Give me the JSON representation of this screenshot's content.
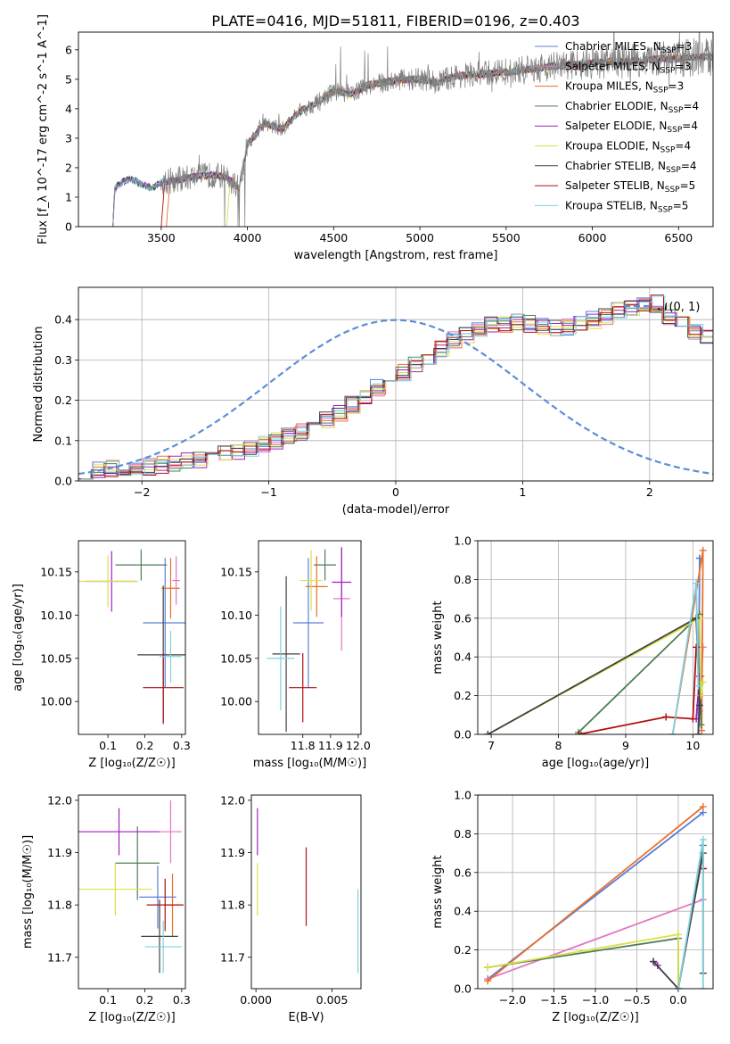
{
  "figure": {
    "title": "PLATE=0416, MJD=51811, FIBERID=0196, z=0.403"
  },
  "models": [
    {
      "name": "Chabrier MILES",
      "nssp": "3",
      "color": "#5b7fd6"
    },
    {
      "name": "Salpeter MILES",
      "nssp": "3",
      "color": "#e377c2"
    },
    {
      "name": "Kroupa MILES",
      "nssp": "3",
      "color": "#e8712a"
    },
    {
      "name": "Chabrier ELODIE",
      "nssp": "4",
      "color": "#4f7f55"
    },
    {
      "name": "Salpeter ELODIE",
      "nssp": "4",
      "color": "#a020c0"
    },
    {
      "name": "Kroupa ELODIE",
      "nssp": "4",
      "color": "#dde04a"
    },
    {
      "name": "Chabrier STELIB",
      "nssp": "4",
      "color": "#404040"
    },
    {
      "name": "Salpeter STELIB",
      "nssp": "5",
      "color": "#b01010"
    },
    {
      "name": "Kroupa STELIB",
      "nssp": "5",
      "color": "#80d0e0"
    }
  ],
  "chart_data": [
    {
      "id": "spectrum",
      "type": "line",
      "xlabel": "wavelength [Angstrom, rest frame]",
      "ylabel": "Flux [f_λ 10^-17 erg cm^-2 s^-1 A^-1]",
      "xlim": [
        3020,
        6700
      ],
      "ylim": [
        0,
        6.6
      ],
      "xticks": [
        3500,
        4000,
        4500,
        5000,
        5500,
        6000,
        6500
      ],
      "yticks": [
        0,
        1,
        2,
        3,
        4,
        5,
        6
      ],
      "data_color": "#808080",
      "continuum": {
        "x": [
          3220,
          3230,
          3260,
          3300,
          3350,
          3400,
          3450,
          3500,
          3600,
          3700,
          3800,
          3850,
          3900,
          3950,
          4000,
          4100,
          4200,
          4300,
          4400,
          4500,
          4600,
          4700,
          4800,
          4900,
          5000,
          5100,
          5200,
          5300,
          5400,
          5500,
          5600,
          5700,
          5800,
          5900,
          6000,
          6100,
          6200,
          6300,
          6400,
          6500,
          6600
        ],
        "y": [
          0.0,
          1.3,
          1.45,
          1.6,
          1.55,
          1.4,
          1.3,
          1.5,
          1.6,
          1.7,
          1.75,
          1.7,
          1.6,
          1.3,
          2.8,
          3.5,
          3.3,
          3.9,
          4.2,
          4.6,
          4.5,
          4.8,
          4.9,
          5.0,
          5.0,
          4.9,
          5.1,
          5.15,
          5.2,
          5.25,
          5.3,
          5.4,
          5.45,
          5.5,
          5.55,
          5.6,
          5.6,
          5.65,
          5.7,
          5.7,
          5.75
        ]
      },
      "legend_position": "upper right"
    },
    {
      "id": "residuals",
      "type": "histogram",
      "xlabel": "(data-model)/error",
      "ylabel": "Normed distribution",
      "xlim": [
        -2.5,
        2.5
      ],
      "ylim": [
        0,
        0.48
      ],
      "xticks": [
        -2,
        -1,
        0,
        1,
        2
      ],
      "yticks": [
        0.0,
        0.1,
        0.2,
        0.3,
        0.4
      ],
      "bin_width": 0.1,
      "base_heights": [
        0.02,
        0.025,
        0.03,
        0.035,
        0.03,
        0.035,
        0.04,
        0.045,
        0.05,
        0.055,
        0.06,
        0.065,
        0.07,
        0.08,
        0.09,
        0.1,
        0.11,
        0.12,
        0.135,
        0.15,
        0.17,
        0.19,
        0.21,
        0.23,
        0.25,
        0.27,
        0.29,
        0.31,
        0.33,
        0.35,
        0.36,
        0.37,
        0.385,
        0.39,
        0.395,
        0.39,
        0.385,
        0.38,
        0.38,
        0.39,
        0.4,
        0.41,
        0.42,
        0.43,
        0.44,
        0.44,
        0.41,
        0.39,
        0.37,
        0.36,
        0.35,
        0.34,
        0.32,
        0.3,
        0.29,
        0.27,
        0.25,
        0.23,
        0.21,
        0.19,
        0.17,
        0.155,
        0.14,
        0.125,
        0.11,
        0.1,
        0.09,
        0.08,
        0.07,
        0.065,
        0.06,
        0.055,
        0.05,
        0.045,
        0.04,
        0.035,
        0.03,
        0.03,
        0.025,
        0.02
      ],
      "gaussian_label": "𝒩(0, 1)",
      "gaussian_color": "#5b8fd6",
      "grid": true
    },
    {
      "id": "age_vs_Z",
      "type": "errorbar",
      "xlabel": "Z [log₁₀(Z/Z☉)]",
      "ylabel": "age  [log₁₀(age/yr)]",
      "xlim": [
        0.02,
        0.31
      ],
      "ylim": [
        9.962,
        10.186
      ],
      "xticks": [
        0.1,
        0.2,
        0.3
      ],
      "yticks": [
        10.0,
        10.05,
        10.1,
        10.15
      ],
      "points": [
        {
          "model": 0,
          "x": 0.255,
          "y": 10.091,
          "xerr": 0.06,
          "yerr": 0.075
        },
        {
          "model": 1,
          "x": 0.285,
          "y": 10.14,
          "xerr": 0.01,
          "yerr": 0.028
        },
        {
          "model": 2,
          "x": 0.27,
          "y": 10.131,
          "xerr": 0.025,
          "yerr": 0.035
        },
        {
          "model": 3,
          "x": 0.19,
          "y": 10.158,
          "xerr": 0.07,
          "yerr": 0.018
        },
        {
          "model": 4,
          "x": 0.11,
          "y": 10.139,
          "xerr": 0.07,
          "yerr": 0.035
        },
        {
          "model": 5,
          "x": 0.1,
          "y": 10.139,
          "xerr": 0.08,
          "yerr": 0.03
        },
        {
          "model": 6,
          "x": 0.25,
          "y": 10.054,
          "xerr": 0.07,
          "yerr": 0.08
        },
        {
          "model": 7,
          "x": 0.25,
          "y": 10.016,
          "xerr": 0.055,
          "yerr": 0.04
        },
        {
          "model": 8,
          "x": 0.27,
          "y": 10.052,
          "xerr": 0.03,
          "yerr": 0.03
        }
      ]
    },
    {
      "id": "age_vs_mass",
      "type": "errorbar",
      "xlabel": "mass [log₁₀(M/M☉)]",
      "ylabel": "",
      "xlim": [
        11.64,
        12.01
      ],
      "ylim": [
        9.962,
        10.186
      ],
      "xticks": [
        11.8,
        11.9,
        12.0
      ],
      "yticks": [
        10.0,
        10.05,
        10.1,
        10.15
      ],
      "points": [
        {
          "model": 0,
          "x": 11.82,
          "y": 10.091,
          "xerr": 0.055,
          "yerr": 0.075
        },
        {
          "model": 1,
          "x": 11.94,
          "y": 10.119,
          "xerr": 0.03,
          "yerr": 0.06
        },
        {
          "model": 2,
          "x": 11.85,
          "y": 10.133,
          "xerr": 0.04,
          "yerr": 0.035
        },
        {
          "model": 3,
          "x": 11.88,
          "y": 10.158,
          "xerr": 0.04,
          "yerr": 0.018
        },
        {
          "model": 4,
          "x": 11.94,
          "y": 10.138,
          "xerr": 0.035,
          "yerr": 0.04
        },
        {
          "model": 5,
          "x": 11.83,
          "y": 10.14,
          "xerr": 0.04,
          "yerr": 0.035
        },
        {
          "model": 6,
          "x": 11.74,
          "y": 10.055,
          "xerr": 0.05,
          "yerr": 0.09
        },
        {
          "model": 7,
          "x": 11.8,
          "y": 10.016,
          "xerr": 0.05,
          "yerr": 0.04
        },
        {
          "model": 8,
          "x": 11.72,
          "y": 10.05,
          "xerr": 0.05,
          "yerr": 0.06
        }
      ]
    },
    {
      "id": "massweight_vs_age",
      "type": "line",
      "xlabel": "age  [log₁₀(age/yr)]",
      "ylabel": "mass weight",
      "xlim": [
        6.8,
        10.3
      ],
      "ylim": [
        0,
        1.0
      ],
      "xticks": [
        7,
        8,
        9,
        10
      ],
      "yticks": [
        0.0,
        0.2,
        0.4,
        0.6,
        0.8,
        1.0
      ],
      "grid": true,
      "series": [
        {
          "model": 0,
          "x": [
            10.1,
            10.08,
            10.1
          ],
          "y": [
            0.91,
            0.0,
            0.91
          ]
        },
        {
          "model": 1,
          "x": [
            10.15,
            10.1,
            10.12
          ],
          "y": [
            0.45,
            0.12,
            0.3
          ]
        },
        {
          "model": 2,
          "x": [
            9.7,
            10.15,
            10.13
          ],
          "y": [
            0.0,
            0.95,
            0.02
          ]
        },
        {
          "model": 3,
          "x": [
            8.3,
            10.05,
            10.1,
            10.12
          ],
          "y": [
            0.01,
            0.6,
            0.62,
            0.05
          ]
        },
        {
          "model": 4,
          "x": [
            10.05,
            10.1
          ],
          "y": [
            0.08,
            0.3
          ]
        },
        {
          "model": 5,
          "x": [
            6.95,
            10.1,
            10.12,
            10.15
          ],
          "y": [
            0.0,
            0.6,
            0.2,
            0.27
          ]
        },
        {
          "model": 6,
          "x": [
            6.95,
            10.05,
            10.1,
            10.08
          ],
          "y": [
            0.0,
            0.6,
            0.15,
            0.0
          ]
        },
        {
          "model": 7,
          "x": [
            8.3,
            9.6,
            10.0,
            10.05
          ],
          "y": [
            0.0,
            0.09,
            0.08,
            0.45
          ]
        },
        {
          "model": 8,
          "x": [
            9.7,
            10.05,
            10.08
          ],
          "y": [
            0.0,
            0.78,
            0.25
          ]
        }
      ]
    },
    {
      "id": "mass_vs_Z",
      "type": "errorbar",
      "xlabel": "Z [log₁₀(Z/Z☉)]",
      "ylabel": "mass [log₁₀(M/M☉)]",
      "xlim": [
        0.02,
        0.31
      ],
      "ylim": [
        11.64,
        12.01
      ],
      "xticks": [
        0.1,
        0.2,
        0.3
      ],
      "yticks": [
        11.7,
        11.8,
        11.9,
        12.0
      ],
      "points": [
        {
          "model": 0,
          "x": 0.235,
          "y": 11.815,
          "xerr": 0.05,
          "yerr": 0.06
        },
        {
          "model": 1,
          "x": 0.27,
          "y": 11.94,
          "xerr": 0.03,
          "yerr": 0.06
        },
        {
          "model": 2,
          "x": 0.275,
          "y": 11.8,
          "xerr": 0.025,
          "yerr": 0.06
        },
        {
          "model": 3,
          "x": 0.18,
          "y": 11.88,
          "xerr": 0.06,
          "yerr": 0.07
        },
        {
          "model": 4,
          "x": 0.13,
          "y": 11.94,
          "xerr": 0.11,
          "yerr": 0.045
        },
        {
          "model": 5,
          "x": 0.12,
          "y": 11.83,
          "xerr": 0.1,
          "yerr": 0.05
        },
        {
          "model": 6,
          "x": 0.24,
          "y": 11.74,
          "xerr": 0.05,
          "yerr": 0.07
        },
        {
          "model": 7,
          "x": 0.255,
          "y": 11.8,
          "xerr": 0.05,
          "yerr": 0.05
        },
        {
          "model": 8,
          "x": 0.25,
          "y": 11.72,
          "xerr": 0.05,
          "yerr": 0.05
        }
      ]
    },
    {
      "id": "mass_vs_ebv",
      "type": "errorbar",
      "xlabel": "E(B-V)",
      "ylabel": "",
      "xlim": [
        -0.0003,
        0.0069
      ],
      "ylim": [
        11.64,
        12.01
      ],
      "xticks": [
        0.0,
        0.005
      ],
      "xtick_labels": [
        "0.000",
        "0.005"
      ],
      "yticks": [
        11.7,
        11.8,
        11.9,
        12.0
      ],
      "points": [
        {
          "model": 4,
          "x": 0.0001,
          "y": 11.94,
          "xerr": 0,
          "yerr": 0.045
        },
        {
          "model": 5,
          "x": 0.0001,
          "y": 11.83,
          "xerr": 0,
          "yerr": 0.05
        },
        {
          "model": 7,
          "x": 0.0033,
          "y": 11.835,
          "xerr": 0,
          "yerr": 0.075
        },
        {
          "model": 8,
          "x": 0.0067,
          "y": 11.75,
          "xerr": 0,
          "yerr": 0.08
        }
      ]
    },
    {
      "id": "massweight_vs_Z",
      "type": "line",
      "xlabel": "Z [log₁₀(Z/Z☉)]",
      "ylabel": "mass weight",
      "xlim": [
        -2.42,
        0.42
      ],
      "ylim": [
        0,
        1.0
      ],
      "xticks": [
        -2.0,
        -1.5,
        -1.0,
        -0.5,
        0.0
      ],
      "yticks": [
        0.0,
        0.2,
        0.4,
        0.6,
        0.8,
        1.0
      ],
      "grid": true,
      "series": [
        {
          "model": 0,
          "x": [
            -2.3,
            0.3
          ],
          "y": [
            0.05,
            0.91
          ]
        },
        {
          "model": 1,
          "x": [
            -2.3,
            0.3
          ],
          "y": [
            0.05,
            0.46
          ]
        },
        {
          "model": 2,
          "x": [
            -2.3,
            0.3
          ],
          "y": [
            0.04,
            0.94
          ]
        },
        {
          "model": 3,
          "x": [
            -2.3,
            0.0,
            0.0,
            0.3
          ],
          "y": [
            0.11,
            0.26,
            0.0,
            0.74
          ]
        },
        {
          "model": 4,
          "x": [
            -0.3,
            -0.25
          ],
          "y": [
            0.14,
            0.12
          ]
        },
        {
          "model": 5,
          "x": [
            -2.3,
            0.0,
            0.0,
            0.0
          ],
          "y": [
            0.11,
            0.28,
            0.0,
            0.28
          ]
        },
        {
          "model": 6,
          "x": [
            -0.3,
            0.0,
            0.3,
            0.3
          ],
          "y": [
            0.14,
            0.0,
            0.7,
            0.08
          ]
        },
        {
          "model": 7,
          "x": [
            0.3,
            0.3
          ],
          "y": [
            0.62,
            0.62
          ]
        },
        {
          "model": 8,
          "x": [
            0.0,
            0.3,
            0.3
          ],
          "y": [
            0.0,
            0.77,
            0.0
          ]
        }
      ]
    }
  ]
}
